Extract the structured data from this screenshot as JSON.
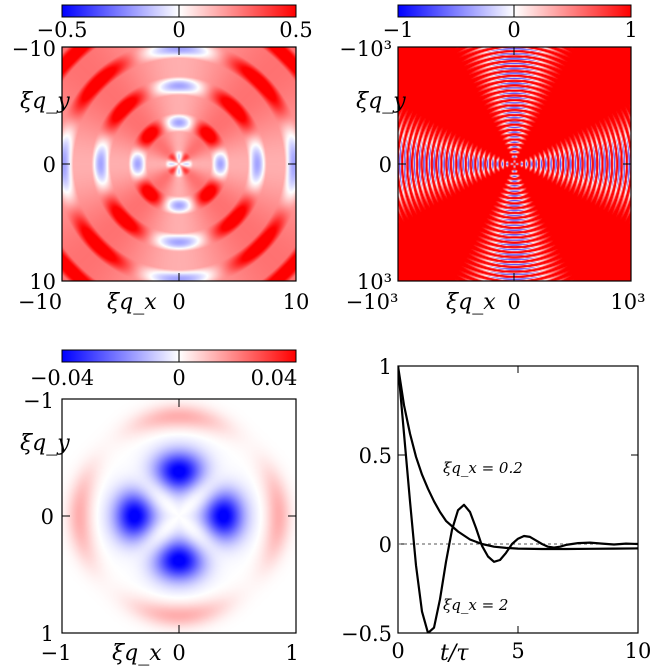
{
  "colors": {
    "negative": "#0000ff",
    "zero": "#ffffff",
    "positive": "#ff0000",
    "frame": "#000000",
    "curve": "#000000"
  },
  "chart_data": [
    {
      "type": "heatmap",
      "panel": "top-left",
      "colormap": "blue-white-red",
      "colorbar": {
        "min": -0.5,
        "max": 0.5,
        "ticks": [
          -0.5,
          0,
          0.5
        ],
        "tick_labels": [
          "−0.5",
          "0",
          "0.5"
        ],
        "placement": "top"
      },
      "xlabel": "ξq_x",
      "ylabel": "ξq_y",
      "xlim": [
        -10,
        10
      ],
      "ylim": [
        -10,
        10
      ],
      "xticks": [
        "−10",
        "0",
        "10"
      ],
      "yticks": [
        "−10",
        "0",
        "10"
      ],
      "pattern": "four-fold pattern: negative lobes along the axes, positive lobes along the diagonals, oscillating rings"
    },
    {
      "type": "heatmap",
      "panel": "top-right",
      "colormap": "blue-white-red",
      "colorbar": {
        "min": -1,
        "max": 1,
        "ticks": [
          -1,
          0,
          1
        ],
        "tick_labels": [
          "−1",
          "0",
          "1"
        ],
        "placement": "top"
      },
      "xlabel": "ξq_x",
      "ylabel": "ξq_y",
      "xlim": [
        -1000,
        1000
      ],
      "ylim": [
        -1000,
        1000
      ],
      "xticks": [
        "−10³",
        "0",
        "10³"
      ],
      "yticks": [
        "−10³",
        "0",
        "10³"
      ],
      "pattern": "dense concentric oscillating rings concentrated along the axes, saturated positive along the diagonals"
    },
    {
      "type": "heatmap",
      "panel": "bottom-left",
      "colormap": "blue-white-red",
      "colorbar": {
        "min": -0.04,
        "max": 0.04,
        "ticks": [
          -0.04,
          0,
          0.04
        ],
        "tick_labels": [
          "−0.04",
          "0",
          "0.04"
        ],
        "placement": "top"
      },
      "xlabel": "ξq_x",
      "ylabel": "ξq_y",
      "xlim": [
        -1,
        1
      ],
      "ylim": [
        -1,
        1
      ],
      "xticks": [
        "−1",
        "0",
        "1"
      ],
      "yticks": [
        "−1",
        "0",
        "1"
      ],
      "pattern": "four negative lobes along the axes with a faint positive outer ring"
    },
    {
      "type": "line",
      "panel": "bottom-right",
      "xlabel": "t/τ",
      "xlim": [
        0,
        10
      ],
      "ylim": [
        -0.5,
        1
      ],
      "xticks": [
        0,
        5,
        10
      ],
      "xtick_labels": [
        "0",
        "5",
        "10"
      ],
      "yticks": [
        -0.5,
        0,
        0.5,
        1
      ],
      "ytick_labels": [
        "−0.5",
        "0",
        "0.5",
        "1"
      ],
      "zero_line": "dashed",
      "series": [
        {
          "name": "ξq_x = 0.2",
          "x": [
            0,
            0.25,
            0.5,
            0.75,
            1,
            1.25,
            1.5,
            1.75,
            2,
            2.5,
            3,
            3.5,
            4,
            4.5,
            5,
            6,
            7,
            8,
            9,
            10
          ],
          "y": [
            1,
            0.78,
            0.62,
            0.49,
            0.39,
            0.31,
            0.24,
            0.18,
            0.13,
            0.07,
            0.025,
            0,
            -0.015,
            -0.022,
            -0.026,
            -0.028,
            -0.028,
            -0.027,
            -0.026,
            -0.025
          ]
        },
        {
          "name": "ξq_x = 2",
          "x": [
            0,
            0.25,
            0.5,
            0.75,
            1,
            1.25,
            1.5,
            1.75,
            2,
            2.25,
            2.5,
            2.75,
            3,
            3.25,
            3.5,
            3.75,
            4,
            4.25,
            4.5,
            4.75,
            5,
            5.25,
            5.5,
            5.75,
            6,
            6.25,
            6.5,
            6.75,
            7,
            7.5,
            8,
            8.5,
            9,
            9.5,
            10
          ],
          "y": [
            1,
            0.62,
            0.24,
            -0.12,
            -0.38,
            -0.5,
            -0.47,
            -0.31,
            -0.1,
            0.08,
            0.19,
            0.22,
            0.18,
            0.09,
            -0.01,
            -0.07,
            -0.1,
            -0.09,
            -0.05,
            0,
            0.03,
            0.045,
            0.04,
            0.02,
            0,
            -0.015,
            -0.02,
            -0.015,
            -0.005,
            0.005,
            0.008,
            0.002,
            -0.003,
            0.002,
            0
          ]
        }
      ]
    }
  ]
}
